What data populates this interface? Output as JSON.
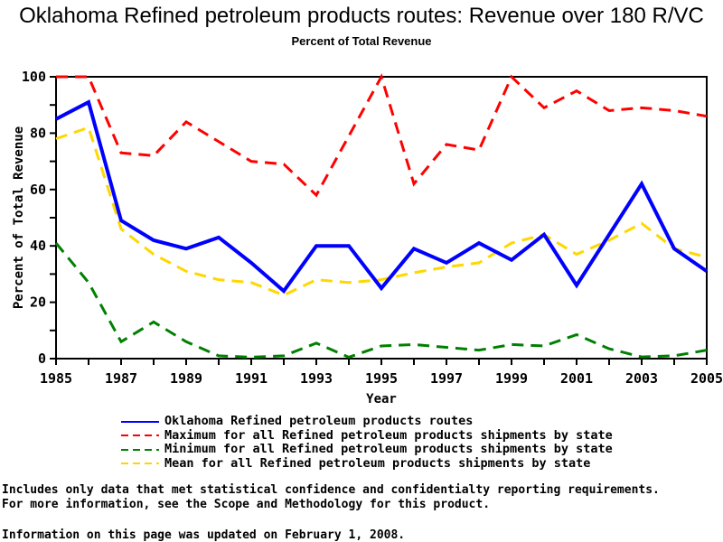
{
  "title": "Oklahoma Refined petroleum products routes: Revenue over 180 R/VC",
  "subtitle": "Percent of Total Revenue",
  "chart_data": {
    "type": "line",
    "x": [
      1985,
      1986,
      1987,
      1988,
      1989,
      1990,
      1991,
      1992,
      1993,
      1994,
      1995,
      1996,
      1997,
      1998,
      1999,
      2000,
      2001,
      2002,
      2003,
      2004,
      2005
    ],
    "xlabel": "Year",
    "ylabel": "Percent of Total Revenue",
    "ylim": [
      0,
      100
    ],
    "y_major_ticks": [
      0,
      20,
      40,
      60,
      80,
      100
    ],
    "y_minor_step": 10,
    "x_major_step": 2,
    "grid": false,
    "legend_position": "bottom-left",
    "series": [
      {
        "name": "Oklahoma Refined petroleum products routes",
        "color": "#0000ff",
        "style": "solid",
        "width": 4,
        "values": [
          85,
          91,
          49,
          42,
          39,
          43,
          34,
          24,
          40,
          40,
          25,
          39,
          34,
          41,
          35,
          44,
          26,
          44,
          62,
          39,
          31
        ]
      },
      {
        "name": "Maximum for all Refined petroleum products shipments by state",
        "color": "#ff0000",
        "style": "dashed",
        "width": 3,
        "values": [
          100,
          100,
          73,
          72,
          84,
          77,
          70,
          69,
          58,
          79,
          100,
          62,
          76,
          74,
          100,
          89,
          95,
          88,
          89,
          88,
          86
        ]
      },
      {
        "name": "Minimum for all Refined petroleum products shipments by state",
        "color": "#008000",
        "style": "dashed",
        "width": 3,
        "values": [
          41,
          27,
          6,
          13,
          6,
          1,
          0.5,
          1,
          5.5,
          0.5,
          4.5,
          5,
          4,
          3,
          5,
          4.5,
          8.5,
          3.5,
          0.6,
          1,
          3
        ]
      },
      {
        "name": "Mean for all Refined petroleum products shipments by state",
        "color": "#ffd700",
        "style": "dashed",
        "width": 3,
        "values": [
          78,
          82,
          46,
          37,
          31,
          28,
          27,
          22.5,
          28,
          27,
          28,
          30.5,
          32.5,
          34,
          41,
          44,
          37,
          42,
          48,
          39,
          36
        ]
      }
    ]
  },
  "footnotes": [
    "Includes only data that met statistical confidence and confidentialty reporting requirements.",
    "For more information, see the Scope and Methodology for this product.",
    "Information on this page was updated on February 1, 2008."
  ]
}
